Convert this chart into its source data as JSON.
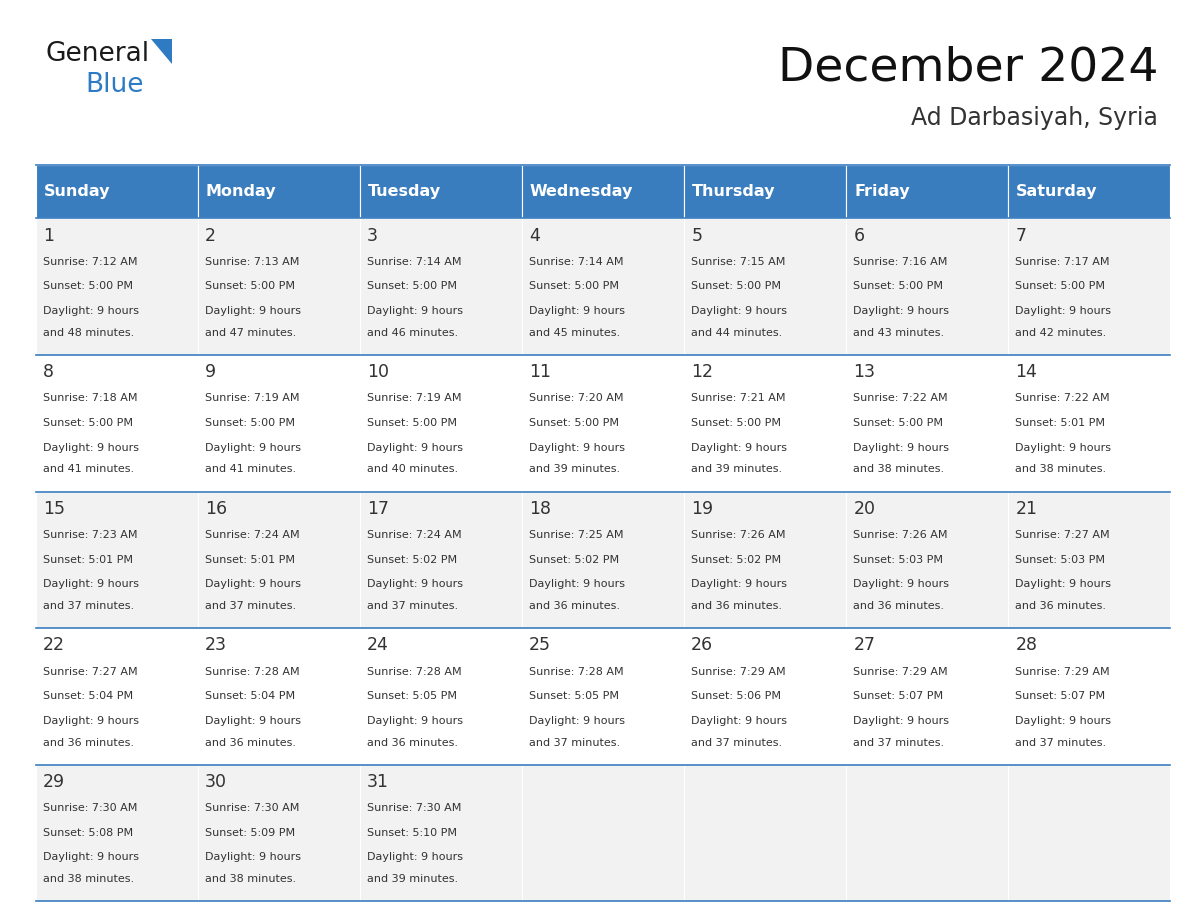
{
  "title": "December 2024",
  "subtitle": "Ad Darbasiyah, Syria",
  "header_color": "#3a7dbf",
  "header_text_color": "#ffffff",
  "cell_bg_odd": "#f2f2f2",
  "cell_bg_even": "#ffffff",
  "text_color": "#333333",
  "border_color": "#3a7dbf",
  "days_of_week": [
    "Sunday",
    "Monday",
    "Tuesday",
    "Wednesday",
    "Thursday",
    "Friday",
    "Saturday"
  ],
  "weeks": [
    [
      {
        "day": 1,
        "sunrise": "7:12 AM",
        "sunset": "5:00 PM",
        "daylight_hrs": 9,
        "daylight_min": 48
      },
      {
        "day": 2,
        "sunrise": "7:13 AM",
        "sunset": "5:00 PM",
        "daylight_hrs": 9,
        "daylight_min": 47
      },
      {
        "day": 3,
        "sunrise": "7:14 AM",
        "sunset": "5:00 PM",
        "daylight_hrs": 9,
        "daylight_min": 46
      },
      {
        "day": 4,
        "sunrise": "7:14 AM",
        "sunset": "5:00 PM",
        "daylight_hrs": 9,
        "daylight_min": 45
      },
      {
        "day": 5,
        "sunrise": "7:15 AM",
        "sunset": "5:00 PM",
        "daylight_hrs": 9,
        "daylight_min": 44
      },
      {
        "day": 6,
        "sunrise": "7:16 AM",
        "sunset": "5:00 PM",
        "daylight_hrs": 9,
        "daylight_min": 43
      },
      {
        "day": 7,
        "sunrise": "7:17 AM",
        "sunset": "5:00 PM",
        "daylight_hrs": 9,
        "daylight_min": 42
      }
    ],
    [
      {
        "day": 8,
        "sunrise": "7:18 AM",
        "sunset": "5:00 PM",
        "daylight_hrs": 9,
        "daylight_min": 41
      },
      {
        "day": 9,
        "sunrise": "7:19 AM",
        "sunset": "5:00 PM",
        "daylight_hrs": 9,
        "daylight_min": 41
      },
      {
        "day": 10,
        "sunrise": "7:19 AM",
        "sunset": "5:00 PM",
        "daylight_hrs": 9,
        "daylight_min": 40
      },
      {
        "day": 11,
        "sunrise": "7:20 AM",
        "sunset": "5:00 PM",
        "daylight_hrs": 9,
        "daylight_min": 39
      },
      {
        "day": 12,
        "sunrise": "7:21 AM",
        "sunset": "5:00 PM",
        "daylight_hrs": 9,
        "daylight_min": 39
      },
      {
        "day": 13,
        "sunrise": "7:22 AM",
        "sunset": "5:00 PM",
        "daylight_hrs": 9,
        "daylight_min": 38
      },
      {
        "day": 14,
        "sunrise": "7:22 AM",
        "sunset": "5:01 PM",
        "daylight_hrs": 9,
        "daylight_min": 38
      }
    ],
    [
      {
        "day": 15,
        "sunrise": "7:23 AM",
        "sunset": "5:01 PM",
        "daylight_hrs": 9,
        "daylight_min": 37
      },
      {
        "day": 16,
        "sunrise": "7:24 AM",
        "sunset": "5:01 PM",
        "daylight_hrs": 9,
        "daylight_min": 37
      },
      {
        "day": 17,
        "sunrise": "7:24 AM",
        "sunset": "5:02 PM",
        "daylight_hrs": 9,
        "daylight_min": 37
      },
      {
        "day": 18,
        "sunrise": "7:25 AM",
        "sunset": "5:02 PM",
        "daylight_hrs": 9,
        "daylight_min": 36
      },
      {
        "day": 19,
        "sunrise": "7:26 AM",
        "sunset": "5:02 PM",
        "daylight_hrs": 9,
        "daylight_min": 36
      },
      {
        "day": 20,
        "sunrise": "7:26 AM",
        "sunset": "5:03 PM",
        "daylight_hrs": 9,
        "daylight_min": 36
      },
      {
        "day": 21,
        "sunrise": "7:27 AM",
        "sunset": "5:03 PM",
        "daylight_hrs": 9,
        "daylight_min": 36
      }
    ],
    [
      {
        "day": 22,
        "sunrise": "7:27 AM",
        "sunset": "5:04 PM",
        "daylight_hrs": 9,
        "daylight_min": 36
      },
      {
        "day": 23,
        "sunrise": "7:28 AM",
        "sunset": "5:04 PM",
        "daylight_hrs": 9,
        "daylight_min": 36
      },
      {
        "day": 24,
        "sunrise": "7:28 AM",
        "sunset": "5:05 PM",
        "daylight_hrs": 9,
        "daylight_min": 36
      },
      {
        "day": 25,
        "sunrise": "7:28 AM",
        "sunset": "5:05 PM",
        "daylight_hrs": 9,
        "daylight_min": 37
      },
      {
        "day": 26,
        "sunrise": "7:29 AM",
        "sunset": "5:06 PM",
        "daylight_hrs": 9,
        "daylight_min": 37
      },
      {
        "day": 27,
        "sunrise": "7:29 AM",
        "sunset": "5:07 PM",
        "daylight_hrs": 9,
        "daylight_min": 37
      },
      {
        "day": 28,
        "sunrise": "7:29 AM",
        "sunset": "5:07 PM",
        "daylight_hrs": 9,
        "daylight_min": 37
      }
    ],
    [
      {
        "day": 29,
        "sunrise": "7:30 AM",
        "sunset": "5:08 PM",
        "daylight_hrs": 9,
        "daylight_min": 38
      },
      {
        "day": 30,
        "sunrise": "7:30 AM",
        "sunset": "5:09 PM",
        "daylight_hrs": 9,
        "daylight_min": 38
      },
      {
        "day": 31,
        "sunrise": "7:30 AM",
        "sunset": "5:10 PM",
        "daylight_hrs": 9,
        "daylight_min": 39
      },
      null,
      null,
      null,
      null
    ]
  ],
  "logo_general_color": "#1a1a1a",
  "logo_blue_color": "#2e7bc4",
  "logo_triangle_color": "#2e7bc4"
}
